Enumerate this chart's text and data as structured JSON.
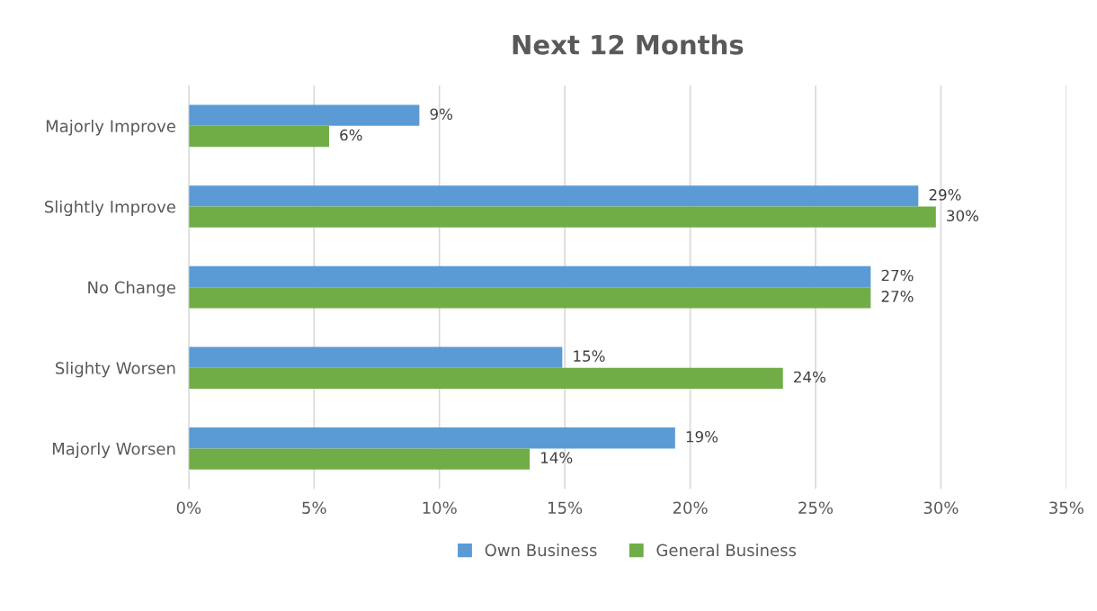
{
  "chart_data": {
    "type": "bar",
    "orientation": "horizontal",
    "title": "Next 12 Months",
    "categories": [
      "Majorly Improve",
      "Slightly Improve",
      "No Change",
      "Slighty Worsen",
      "Majorly Worsen"
    ],
    "series": [
      {
        "name": "Own Business",
        "color": "#5b9bd5",
        "values": [
          9.2,
          29.1,
          27.2,
          14.9,
          19.4
        ],
        "value_labels": [
          "9%",
          "29%",
          "27%",
          "15%",
          "19%"
        ]
      },
      {
        "name": "General Business",
        "color": "#70ad47",
        "values": [
          5.6,
          29.8,
          27.2,
          23.7,
          13.6
        ],
        "value_labels": [
          "6%",
          "30%",
          "27%",
          "24%",
          "14%"
        ]
      }
    ],
    "xlim": [
      0,
      35
    ],
    "xticks": [
      {
        "value": 0,
        "label": "0%"
      },
      {
        "value": 5,
        "label": "5%"
      },
      {
        "value": 10,
        "label": "10%"
      },
      {
        "value": 15,
        "label": "15%"
      },
      {
        "value": 20,
        "label": "20%"
      },
      {
        "value": 25,
        "label": "25%"
      },
      {
        "value": 30,
        "label": "30%"
      },
      {
        "value": 35,
        "label": "35%"
      }
    ],
    "grid": "x",
    "legend": "bottom"
  }
}
